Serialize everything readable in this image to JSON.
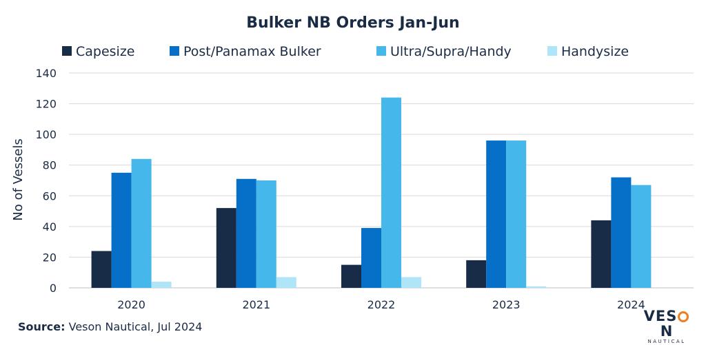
{
  "chart_data": {
    "type": "bar",
    "title": "Bulker NB Orders Jan-Jun",
    "ylabel": "No of Vessels",
    "xlabel": "",
    "ylim": [
      0,
      140
    ],
    "yticks": [
      0,
      20,
      40,
      60,
      80,
      100,
      120,
      140
    ],
    "grid": true,
    "legend_position": "top",
    "categories": [
      "2020",
      "2021",
      "2022",
      "2023",
      "2024"
    ],
    "series": [
      {
        "name": "Capesize",
        "color": "#182b47",
        "values": [
          24,
          52,
          15,
          18,
          44
        ]
      },
      {
        "name": "Post/Panamax Bulker",
        "color": "#0670c8",
        "values": [
          75,
          71,
          39,
          96,
          72
        ]
      },
      {
        "name": "Ultra/Supra/Handy",
        "color": "#45b7ea",
        "values": [
          84,
          70,
          124,
          96,
          67
        ]
      },
      {
        "name": "Handysize",
        "color": "#aee5f8",
        "values": [
          4,
          7,
          7,
          1,
          0
        ]
      }
    ]
  },
  "source": {
    "label": "Source:",
    "text": " Veson Nautical, Jul 2024"
  },
  "logo": {
    "main_left": "VES",
    "main_right": "N",
    "sub": "NAUTICAL",
    "accent_color": "#ef7d22"
  }
}
